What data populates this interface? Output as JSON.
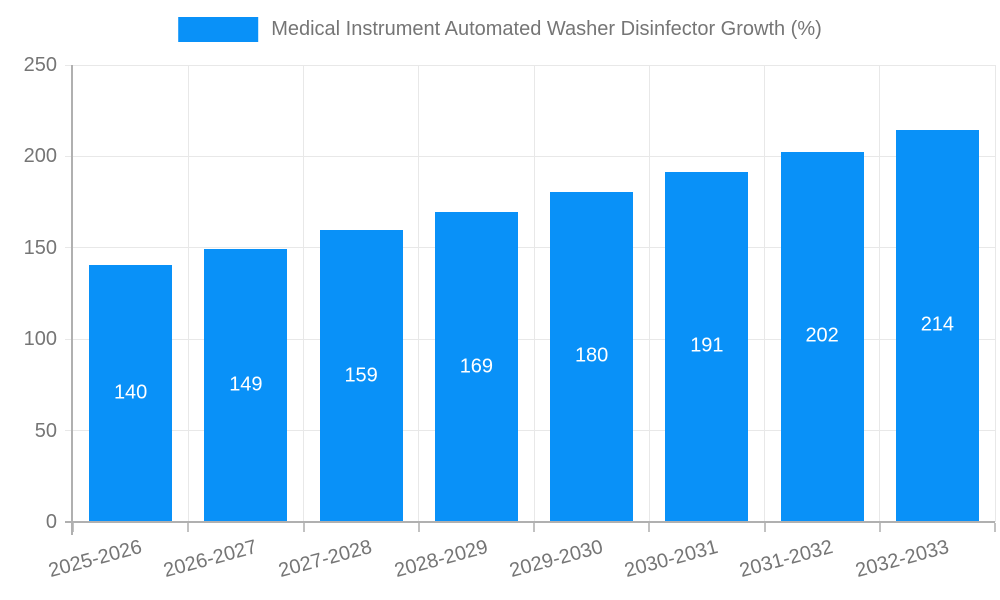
{
  "chart_data": {
    "type": "bar",
    "title": "Medical Instrument Automated Washer Disinfector Growth (%)",
    "categories": [
      "2025-2026",
      "2026-2027",
      "2027-2028",
      "2028-2029",
      "2029-2030",
      "2030-2031",
      "2031-2032",
      "2032-2033"
    ],
    "values": [
      140,
      149,
      159,
      169,
      180,
      191,
      202,
      214
    ],
    "xlabel": "",
    "ylabel": "",
    "ylim": [
      0,
      250
    ],
    "y_ticks": [
      0,
      50,
      100,
      150,
      200,
      250
    ],
    "grid": true,
    "legend_position": "top-center",
    "x_tick_rotation_deg": -15,
    "colors": {
      "bar": "#0991f8",
      "value_label": "#ffffff",
      "grid_line": "#e8e8e8",
      "axis_line": "#b0b0b0",
      "tick_mark": "#c2c2c2",
      "tick_label": "#757575",
      "title_text": "#757575"
    }
  }
}
